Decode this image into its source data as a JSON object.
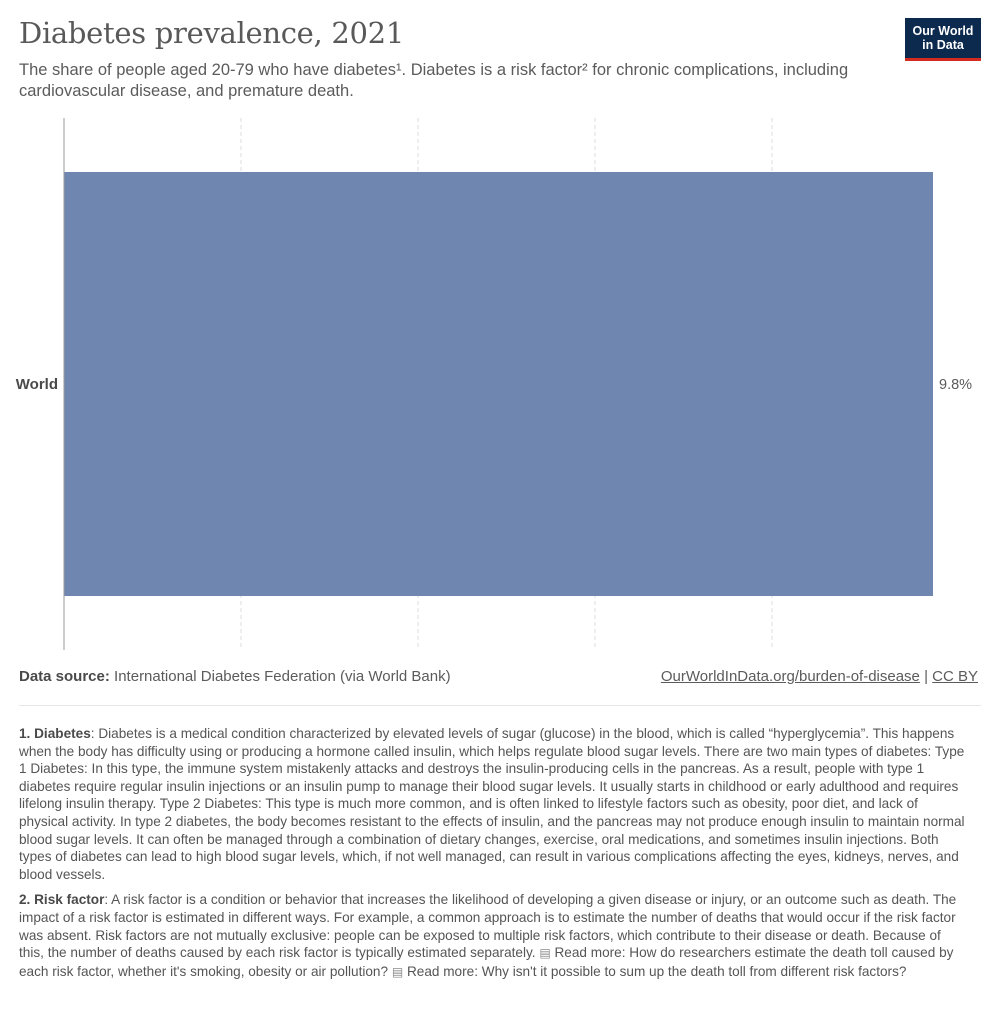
{
  "header": {
    "title": "Diabetes prevalence, 2021",
    "subtitle": "The share of people aged 20-79 who have diabetes¹. Diabetes is a risk factor² for chronic complications, including cardiovascular disease, and premature death.",
    "logo_line1": "Our World",
    "logo_line2": "in Data"
  },
  "colors": {
    "bar": "#6f87b0",
    "logo_bg": "#0c2a4d",
    "logo_accent": "#d42b21"
  },
  "chart_data": {
    "type": "bar",
    "orientation": "horizontal",
    "categories": [
      "World"
    ],
    "values": [
      9.8
    ],
    "value_labels": [
      "9.8%"
    ],
    "unit": "%",
    "xlim": [
      0,
      9.8
    ],
    "grid": true
  },
  "footer": {
    "source_label": "Data source:",
    "source_text": "International Diabetes Federation (via World Bank)",
    "link_text": "OurWorldInData.org/burden-of-disease",
    "separator": "|",
    "license_text": "CC BY"
  },
  "notes": [
    {
      "label": "1. Diabetes",
      "text": ": Diabetes is a medical condition characterized by elevated levels of sugar (glucose) in the blood, which is called “hyperglycemia”. This happens when the body has difficulty using or producing a hormone called insulin, which helps regulate blood sugar levels. There are two main types of diabetes: Type 1 Diabetes: In this type, the immune system mistakenly attacks and destroys the insulin-producing cells in the pancreas. As a result, people with type 1 diabetes require regular insulin injections or an insulin pump to manage their blood sugar levels. It usually starts in childhood or early adulthood and requires lifelong insulin therapy. Type 2 Diabetes: This type is much more common, and is often linked to lifestyle factors such as obesity, poor diet, and lack of physical activity. In type 2 diabetes, the body becomes resistant to the effects of insulin, and the pancreas may not produce enough insulin to maintain normal blood sugar levels. It can often be managed through a combination of dietary changes, exercise, oral medications, and sometimes insulin injections. Both types of diabetes can lead to high blood sugar levels, which, if not well managed, can result in various complications affecting the eyes, kidneys, nerves, and blood vessels."
    },
    {
      "label": "2. Risk factor",
      "text": ": A risk factor is a condition or behavior that increases the likelihood of developing a given disease or injury, or an outcome such as death. The impact of a risk factor is estimated in different ways. For example, a common approach is to estimate the number of deaths that would occur if the risk factor was absent. Risk factors are not mutually exclusive: people can be exposed to multiple risk factors, which contribute to their disease or death. Because of this, the number of deaths caused by each risk factor is typically estimated separately.",
      "read_more_1": "Read more: How do researchers estimate the death toll caused by each risk factor, whether it's smoking, obesity or air pollution?",
      "read_more_2": "Read more: Why isn't it possible to sum up the death toll from different risk factors?",
      "icon": "document-icon"
    }
  ]
}
